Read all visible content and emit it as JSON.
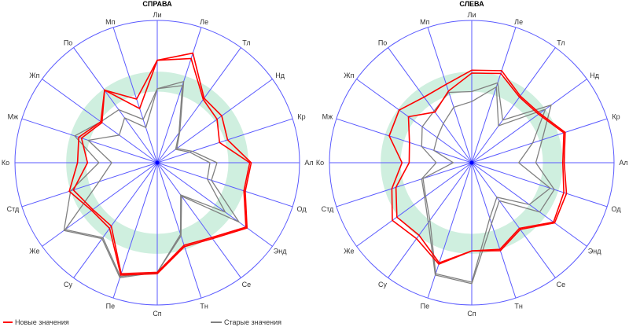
{
  "colors": {
    "new": "#ff0000",
    "old": "#808080",
    "grid": "#5a5aff",
    "band": "#cfefdf"
  },
  "legend": {
    "new_label": "Новые значения",
    "old_label": "Старые значения"
  },
  "chart_data": [
    {
      "type": "radar",
      "title": "СПРАВА",
      "axes": [
        "Ли",
        "Ле",
        "Тл",
        "Нд",
        "Кр",
        "Ал",
        "Од",
        "Энд",
        "Се",
        "Тн",
        "Сп",
        "Пе",
        "Су",
        "Же",
        "Стд",
        "Ко",
        "Мж",
        "Жп",
        "По",
        "Мп"
      ],
      "range": [
        0,
        100
      ],
      "band": [
        50,
        64
      ],
      "series": [
        {
          "name": "Новые значения",
          "group": "new",
          "values": [
            72,
            81,
            56,
            56,
            52,
            66,
            65,
            78,
            66,
            62,
            78,
            83,
            57,
            57,
            65,
            56,
            58,
            49,
            63,
            47
          ]
        },
        {
          "name": "Новые значения",
          "group": "new",
          "values": [
            72,
            77,
            55,
            52,
            46,
            65,
            64,
            77,
            65,
            61,
            77,
            82,
            55,
            56,
            62,
            49,
            56,
            48,
            63,
            40
          ]
        },
        {
          "name": "Старые значения",
          "group": "old",
          "values": [
            52,
            60,
            27,
            17,
            26,
            42,
            40,
            71,
            29,
            54,
            77,
            85,
            66,
            81,
            64,
            41,
            61,
            49,
            46,
            32
          ]
        },
        {
          "name": "Старые значения",
          "group": "old",
          "values": [
            52,
            57,
            26,
            16,
            24,
            37,
            37,
            59,
            28,
            53,
            77,
            84,
            65,
            80,
            43,
            32,
            51,
            33,
            39,
            26
          ]
        }
      ]
    },
    {
      "type": "radar",
      "title": "СЛЕВА",
      "axes": [
        "Ли",
        "Ле",
        "Тл",
        "Нд",
        "Кр",
        "Ал",
        "Од",
        "Энд",
        "Се",
        "Тн",
        "Сп",
        "Пе",
        "Су",
        "Же",
        "Стд",
        "Ко",
        "Мж",
        "Жп",
        "По",
        "Мп"
      ],
      "range": [
        0,
        100
      ],
      "band": [
        50,
        64
      ],
      "series": [
        {
          "name": "Новые значения",
          "group": "new",
          "values": [
            65,
            68,
            58,
            59,
            69,
            65,
            70,
            72,
            58,
            65,
            62,
            75,
            66,
            69,
            59,
            49,
            61,
            63,
            57,
            58
          ]
        },
        {
          "name": "Новые значения",
          "group": "new",
          "values": [
            63,
            66,
            57,
            58,
            68,
            64,
            68,
            71,
            57,
            64,
            62,
            74,
            63,
            65,
            56,
            44,
            46,
            55,
            44,
            53
          ]
        },
        {
          "name": "Старые значения",
          "group": "old",
          "values": [
            50,
            59,
            37,
            69,
            52,
            45,
            61,
            59,
            33,
            45,
            85,
            83,
            52,
            41,
            37,
            25,
            37,
            43,
            45,
            52
          ]
        },
        {
          "name": "Старые значения",
          "group": "old",
          "values": [
            43,
            56,
            32,
            64,
            45,
            33,
            58,
            50,
            30,
            41,
            84,
            82,
            50,
            40,
            36,
            13,
            28,
            30,
            34,
            41
          ]
        }
      ]
    }
  ]
}
